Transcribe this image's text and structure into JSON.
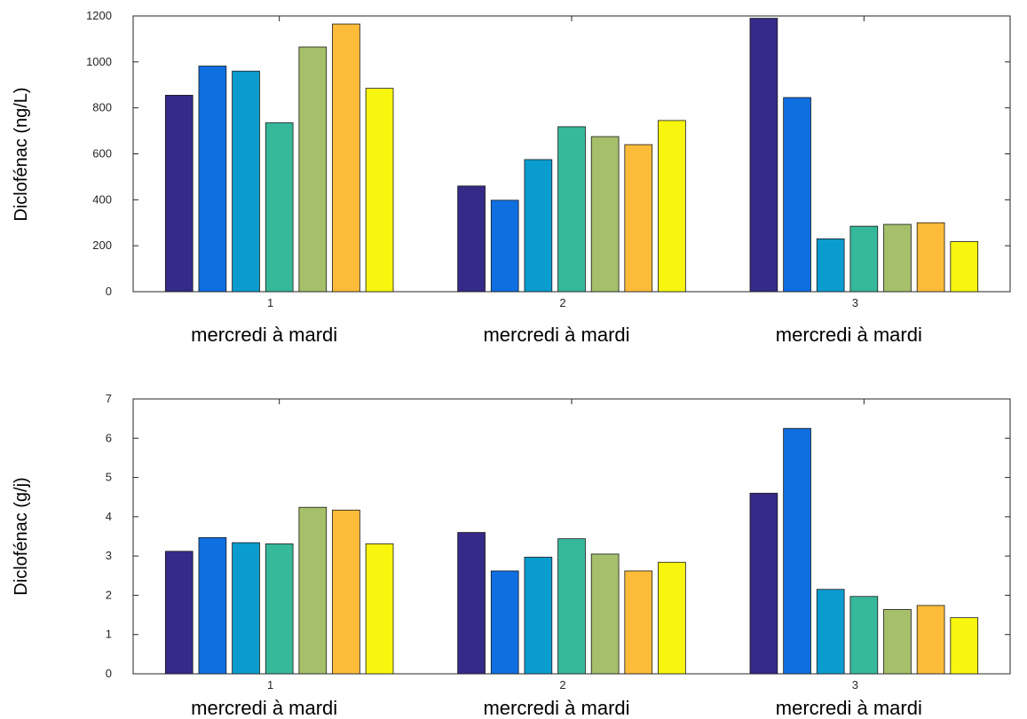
{
  "chart_data": [
    {
      "type": "bar",
      "categories": [
        "1",
        "2",
        "3"
      ],
      "category_labels": [
        "mercredi à mardi",
        "mercredi à mardi",
        "mercredi à mardi"
      ],
      "series_colors": [
        "#352a87",
        "#0f6ee0",
        "#0b9ccf",
        "#36b89a",
        "#a5bf6a",
        "#fdbb3a",
        "#f8f50f"
      ],
      "series": [
        {
          "values": [
            855,
            460,
            1190
          ]
        },
        {
          "values": [
            982,
            398,
            845
          ]
        },
        {
          "values": [
            960,
            575,
            230
          ]
        },
        {
          "values": [
            735,
            718,
            285
          ]
        },
        {
          "values": [
            1065,
            675,
            293
          ]
        },
        {
          "values": [
            1165,
            640,
            300
          ]
        },
        {
          "values": [
            885,
            745,
            218
          ]
        }
      ],
      "title": "",
      "xlabel": "",
      "ylabel": "Diclofénac (ng/L)",
      "ylim": [
        0,
        1200
      ],
      "yticks": [
        0,
        200,
        400,
        600,
        800,
        1000,
        1200
      ],
      "grid": false,
      "legend": "none"
    },
    {
      "type": "bar",
      "categories": [
        "1",
        "2",
        "3"
      ],
      "category_labels": [
        "mercredi à mardi",
        "mercredi à mardi",
        "mercredi à mardi"
      ],
      "series_colors": [
        "#352a87",
        "#0f6ee0",
        "#0b9ccf",
        "#36b89a",
        "#a5bf6a",
        "#fdbb3a",
        "#f8f50f"
      ],
      "series": [
        {
          "values": [
            3.12,
            3.6,
            4.6
          ]
        },
        {
          "values": [
            3.47,
            2.62,
            6.25
          ]
        },
        {
          "values": [
            3.34,
            2.97,
            2.15
          ]
        },
        {
          "values": [
            3.31,
            3.44,
            1.97
          ]
        },
        {
          "values": [
            4.24,
            3.05,
            1.64
          ]
        },
        {
          "values": [
            4.17,
            2.62,
            1.74
          ]
        },
        {
          "values": [
            3.31,
            2.84,
            1.43
          ]
        }
      ],
      "title": "",
      "xlabel": "",
      "ylabel": "Diclofénac (g/j)",
      "ylim": [
        0,
        7
      ],
      "yticks": [
        0,
        1,
        2,
        3,
        4,
        5,
        6,
        7
      ],
      "grid": false,
      "legend": "none"
    }
  ]
}
